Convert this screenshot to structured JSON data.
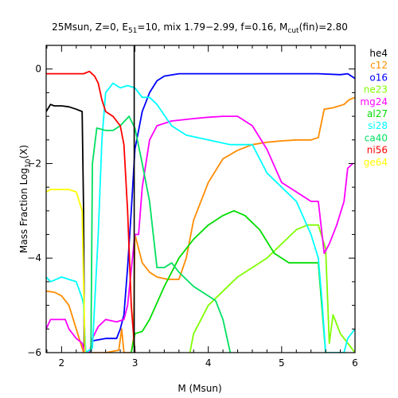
{
  "chart_data": {
    "type": "line",
    "title": {
      "prefix": "25Msun, Z=0, E",
      "e_sub": "51",
      "middle": "=10, mix 1.79−2.99, f=0.16, M",
      "m_sub": "cut",
      "suffix": "(fin)=2.80"
    },
    "xlabel": "M (Msun)",
    "ylabel": {
      "main": "Mass Fraction Log",
      "sub": "10",
      "tail": "(X)"
    },
    "xlim": [
      1.79,
      6.0
    ],
    "ylim": [
      -6.0,
      0.5
    ],
    "x_ticks": [
      {
        "value": 2,
        "label": "2"
      },
      {
        "value": 3,
        "label": "3"
      },
      {
        "value": 4,
        "label": "4"
      },
      {
        "value": 5,
        "label": "5"
      },
      {
        "value": 6,
        "label": "6"
      }
    ],
    "y_ticks": [
      {
        "value": 0,
        "label": "0"
      },
      {
        "value": -2,
        "label": "−2"
      },
      {
        "value": -4,
        "label": "−4"
      },
      {
        "value": -6,
        "label": "−6"
      }
    ],
    "mass_cut": 2.99,
    "legend_position": "right-outside",
    "series": [
      {
        "name": "he4",
        "color": "#000000",
        "points": [
          [
            1.79,
            -0.9
          ],
          [
            1.85,
            -0.75
          ],
          [
            1.9,
            -0.78
          ],
          [
            2.0,
            -0.78
          ],
          [
            2.1,
            -0.8
          ],
          [
            2.2,
            -0.85
          ],
          [
            2.28,
            -0.9
          ],
          [
            2.3,
            -3.0
          ],
          [
            2.31,
            -6.0
          ]
        ]
      },
      {
        "name": "c12",
        "color": "#ff8c00",
        "points": [
          [
            1.79,
            -4.7
          ],
          [
            1.9,
            -4.72
          ],
          [
            2.0,
            -4.8
          ],
          [
            2.1,
            -5.0
          ],
          [
            2.2,
            -5.5
          ],
          [
            2.3,
            -6.0
          ],
          [
            2.31,
            -6.0
          ],
          [
            2.6,
            -6.0
          ],
          [
            2.78,
            -5.95
          ],
          [
            2.82,
            -5.5
          ],
          [
            2.85,
            -6.0
          ],
          [
            2.95,
            -6.0
          ],
          [
            2.98,
            -5.7
          ],
          [
            3.0,
            -3.5
          ],
          [
            3.05,
            -3.8
          ],
          [
            3.1,
            -4.1
          ],
          [
            3.2,
            -4.3
          ],
          [
            3.3,
            -4.4
          ],
          [
            3.45,
            -4.45
          ],
          [
            3.6,
            -4.45
          ],
          [
            3.7,
            -4.0
          ],
          [
            3.8,
            -3.2
          ],
          [
            4.0,
            -2.4
          ],
          [
            4.2,
            -1.9
          ],
          [
            4.4,
            -1.72
          ],
          [
            4.6,
            -1.6
          ],
          [
            4.8,
            -1.55
          ],
          [
            5.0,
            -1.52
          ],
          [
            5.2,
            -1.5
          ],
          [
            5.4,
            -1.5
          ],
          [
            5.5,
            -1.45
          ],
          [
            5.58,
            -0.85
          ],
          [
            5.7,
            -0.82
          ],
          [
            5.85,
            -0.75
          ],
          [
            5.92,
            -0.65
          ],
          [
            6.0,
            -0.6
          ]
        ]
      },
      {
        "name": "o16",
        "color": "#0000ff",
        "points": [
          [
            2.4,
            -6.0
          ],
          [
            2.42,
            -5.75
          ],
          [
            2.6,
            -5.7
          ],
          [
            2.75,
            -5.7
          ],
          [
            2.8,
            -5.5
          ],
          [
            2.85,
            -5.2
          ],
          [
            2.9,
            -4.2
          ],
          [
            2.95,
            -3.0
          ],
          [
            3.0,
            -1.7
          ],
          [
            3.1,
            -0.9
          ],
          [
            3.2,
            -0.5
          ],
          [
            3.3,
            -0.25
          ],
          [
            3.4,
            -0.15
          ],
          [
            3.6,
            -0.1
          ],
          [
            4.0,
            -0.1
          ],
          [
            4.5,
            -0.1
          ],
          [
            5.0,
            -0.1
          ],
          [
            5.5,
            -0.1
          ],
          [
            5.8,
            -0.12
          ],
          [
            5.9,
            -0.1
          ],
          [
            6.0,
            -0.2
          ]
        ]
      },
      {
        "name": "ne23",
        "color": "#7fff00",
        "points": [
          [
            3.75,
            -6.0
          ],
          [
            3.8,
            -5.6
          ],
          [
            3.9,
            -5.3
          ],
          [
            4.0,
            -5.0
          ],
          [
            4.2,
            -4.7
          ],
          [
            4.4,
            -4.4
          ],
          [
            4.6,
            -4.2
          ],
          [
            4.8,
            -4.0
          ],
          [
            5.0,
            -3.7
          ],
          [
            5.2,
            -3.4
          ],
          [
            5.35,
            -3.3
          ],
          [
            5.5,
            -3.3
          ],
          [
            5.6,
            -3.8
          ],
          [
            5.65,
            -5.8
          ],
          [
            5.7,
            -5.2
          ],
          [
            5.8,
            -5.6
          ],
          [
            5.9,
            -5.8
          ],
          [
            6.0,
            -6.0
          ]
        ]
      },
      {
        "name": "mg24",
        "color": "#ff00ff",
        "points": [
          [
            1.79,
            -5.5
          ],
          [
            1.85,
            -5.3
          ],
          [
            1.95,
            -5.3
          ],
          [
            2.05,
            -5.3
          ],
          [
            2.1,
            -5.5
          ],
          [
            2.2,
            -5.7
          ],
          [
            2.28,
            -5.8
          ],
          [
            2.32,
            -6.0
          ],
          [
            2.38,
            -6.0
          ],
          [
            2.42,
            -5.7
          ],
          [
            2.5,
            -5.45
          ],
          [
            2.6,
            -5.3
          ],
          [
            2.75,
            -5.35
          ],
          [
            2.85,
            -5.3
          ],
          [
            2.9,
            -5.0
          ],
          [
            3.0,
            -3.5
          ],
          [
            3.05,
            -3.5
          ],
          [
            3.1,
            -2.5
          ],
          [
            3.2,
            -1.5
          ],
          [
            3.3,
            -1.2
          ],
          [
            3.5,
            -1.1
          ],
          [
            3.8,
            -1.05
          ],
          [
            4.0,
            -1.02
          ],
          [
            4.2,
            -1.0
          ],
          [
            4.4,
            -1.0
          ],
          [
            4.6,
            -1.2
          ],
          [
            4.8,
            -1.7
          ],
          [
            5.0,
            -2.4
          ],
          [
            5.2,
            -2.6
          ],
          [
            5.4,
            -2.8
          ],
          [
            5.5,
            -2.8
          ],
          [
            5.58,
            -3.9
          ],
          [
            5.65,
            -3.7
          ],
          [
            5.75,
            -3.3
          ],
          [
            5.85,
            -2.8
          ],
          [
            5.9,
            -2.1
          ],
          [
            5.97,
            -2.0
          ]
        ]
      },
      {
        "name": "al27",
        "color": "#00dd00",
        "points": [
          [
            2.95,
            -6.0
          ],
          [
            3.0,
            -5.6
          ],
          [
            3.1,
            -5.55
          ],
          [
            3.2,
            -5.3
          ],
          [
            3.4,
            -4.6
          ],
          [
            3.6,
            -4.0
          ],
          [
            3.8,
            -3.6
          ],
          [
            4.0,
            -3.3
          ],
          [
            4.2,
            -3.1
          ],
          [
            4.35,
            -3.0
          ],
          [
            4.5,
            -3.1
          ],
          [
            4.7,
            -3.4
          ],
          [
            4.9,
            -3.9
          ],
          [
            5.1,
            -4.1
          ],
          [
            5.3,
            -4.1
          ],
          [
            5.5,
            -4.1
          ],
          [
            5.6,
            -6.0
          ]
        ]
      },
      {
        "name": "si28",
        "color": "#00ffff",
        "points": [
          [
            1.79,
            -4.4
          ],
          [
            1.85,
            -4.5
          ],
          [
            2.0,
            -4.4
          ],
          [
            2.1,
            -4.45
          ],
          [
            2.2,
            -4.5
          ],
          [
            2.28,
            -4.85
          ],
          [
            2.3,
            -5.0
          ],
          [
            2.33,
            -6.0
          ],
          [
            2.42,
            -5.9
          ],
          [
            2.5,
            -3.5
          ],
          [
            2.55,
            -1.5
          ],
          [
            2.6,
            -0.5
          ],
          [
            2.7,
            -0.3
          ],
          [
            2.8,
            -0.4
          ],
          [
            2.9,
            -0.35
          ],
          [
            3.0,
            -0.4
          ],
          [
            3.1,
            -0.6
          ],
          [
            3.2,
            -0.6
          ],
          [
            3.3,
            -0.75
          ],
          [
            3.5,
            -1.2
          ],
          [
            3.7,
            -1.4
          ],
          [
            4.0,
            -1.5
          ],
          [
            4.3,
            -1.6
          ],
          [
            4.6,
            -1.6
          ],
          [
            4.8,
            -2.2
          ],
          [
            5.0,
            -2.5
          ],
          [
            5.2,
            -2.8
          ],
          [
            5.4,
            -3.5
          ],
          [
            5.5,
            -4.0
          ],
          [
            5.55,
            -4.9
          ],
          [
            5.6,
            -6.0
          ],
          [
            5.85,
            -6.0
          ],
          [
            5.9,
            -5.7
          ],
          [
            6.0,
            -5.5
          ]
        ]
      },
      {
        "name": "ca40",
        "color": "#00e060",
        "points": [
          [
            2.4,
            -6.0
          ],
          [
            2.42,
            -2.0
          ],
          [
            2.48,
            -1.25
          ],
          [
            2.6,
            -1.3
          ],
          [
            2.7,
            -1.3
          ],
          [
            2.8,
            -1.2
          ],
          [
            2.92,
            -1.0
          ],
          [
            3.0,
            -1.25
          ],
          [
            3.1,
            -2.0
          ],
          [
            3.2,
            -2.8
          ],
          [
            3.3,
            -4.2
          ],
          [
            3.4,
            -4.2
          ],
          [
            3.5,
            -4.1
          ],
          [
            3.6,
            -4.3
          ],
          [
            3.8,
            -4.6
          ],
          [
            4.0,
            -4.8
          ],
          [
            4.1,
            -4.9
          ],
          [
            4.2,
            -5.3
          ],
          [
            4.3,
            -6.0
          ]
        ]
      },
      {
        "name": "ni56",
        "color": "#ff0000",
        "points": [
          [
            1.79,
            -0.1
          ],
          [
            1.9,
            -0.1
          ],
          [
            2.1,
            -0.1
          ],
          [
            2.3,
            -0.1
          ],
          [
            2.38,
            -0.05
          ],
          [
            2.45,
            -0.15
          ],
          [
            2.5,
            -0.3
          ],
          [
            2.55,
            -0.65
          ],
          [
            2.6,
            -0.9
          ],
          [
            2.7,
            -1.0
          ],
          [
            2.8,
            -1.2
          ],
          [
            2.85,
            -1.6
          ],
          [
            2.9,
            -3.0
          ],
          [
            2.95,
            -5.0
          ],
          [
            3.0,
            -6.0
          ]
        ]
      },
      {
        "name": "ge64",
        "color": "#ffff00",
        "points": [
          [
            1.79,
            -2.6
          ],
          [
            1.85,
            -2.55
          ],
          [
            2.0,
            -2.55
          ],
          [
            2.1,
            -2.55
          ],
          [
            2.2,
            -2.6
          ],
          [
            2.28,
            -3.0
          ],
          [
            2.32,
            -6.0
          ]
        ]
      }
    ]
  }
}
